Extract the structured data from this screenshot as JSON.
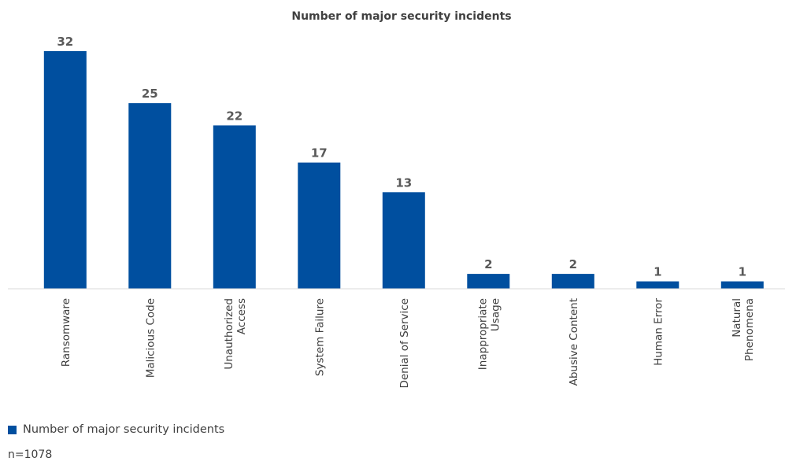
{
  "chart_data": {
    "type": "bar",
    "title": "Number of major security incidents",
    "categories": [
      "Ransomware",
      "Malicious Code",
      "Unauthorized Access",
      "System Failure",
      "Denial of Service",
      "Inappropriate Usage",
      "Abusive Content",
      "Human Error",
      "Natural Phenomena"
    ],
    "category_lines": [
      [
        "Ransomware"
      ],
      [
        "Malicious Code"
      ],
      [
        "Unauthorized",
        "Access"
      ],
      [
        "System Failure"
      ],
      [
        "Denial of Service"
      ],
      [
        "Inappropriate",
        "Usage"
      ],
      [
        "Abusive Content"
      ],
      [
        "Human Error"
      ],
      [
        "Natural",
        "Phenomena"
      ]
    ],
    "series": [
      {
        "name": "Number of major security incidents",
        "values": [
          32,
          25,
          22,
          17,
          13,
          2,
          2,
          1,
          1
        ],
        "color": "#004f9f"
      }
    ],
    "ylim": [
      0,
      32
    ],
    "data_labels": true,
    "grid": false,
    "legend": "bottom-left",
    "xlabel": "",
    "ylabel": ""
  },
  "legend": {
    "label": "Number of major security incidents",
    "color": "#004f9f"
  },
  "footnote": "n=1078"
}
